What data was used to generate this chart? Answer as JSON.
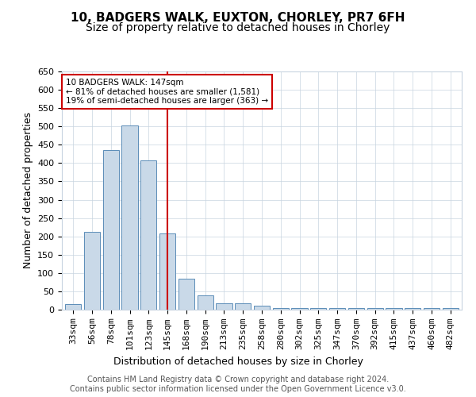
{
  "title_line1": "10, BADGERS WALK, EUXTON, CHORLEY, PR7 6FH",
  "title_line2": "Size of property relative to detached houses in Chorley",
  "xlabel": "Distribution of detached houses by size in Chorley",
  "ylabel": "Number of detached properties",
  "footer_line1": "Contains HM Land Registry data © Crown copyright and database right 2024.",
  "footer_line2": "Contains public sector information licensed under the Open Government Licence v3.0.",
  "categories": [
    "33sqm",
    "56sqm",
    "78sqm",
    "101sqm",
    "123sqm",
    "145sqm",
    "168sqm",
    "190sqm",
    "213sqm",
    "235sqm",
    "258sqm",
    "280sqm",
    "302sqm",
    "325sqm",
    "347sqm",
    "370sqm",
    "392sqm",
    "415sqm",
    "437sqm",
    "460sqm",
    "482sqm"
  ],
  "values": [
    15,
    212,
    435,
    502,
    407,
    207,
    84,
    38,
    18,
    18,
    10,
    5,
    4,
    4,
    4,
    4,
    4,
    4,
    4,
    4,
    5
  ],
  "bar_color": "#c9d9e8",
  "bar_edge_color": "#5b8db8",
  "highlight_index": 5,
  "highlight_line_color": "#cc0000",
  "annotation_text_line1": "10 BADGERS WALK: 147sqm",
  "annotation_text_line2": "← 81% of detached houses are smaller (1,581)",
  "annotation_text_line3": "19% of semi-detached houses are larger (363) →",
  "annotation_box_color": "#ffffff",
  "annotation_box_edge_color": "#cc0000",
  "ylim": [
    0,
    650
  ],
  "yticks": [
    0,
    50,
    100,
    150,
    200,
    250,
    300,
    350,
    400,
    450,
    500,
    550,
    600,
    650
  ],
  "bg_color": "#ffffff",
  "grid_color": "#c8d4e0",
  "title_fontsize": 11,
  "subtitle_fontsize": 10,
  "axis_label_fontsize": 9,
  "tick_fontsize": 8,
  "footer_fontsize": 7
}
